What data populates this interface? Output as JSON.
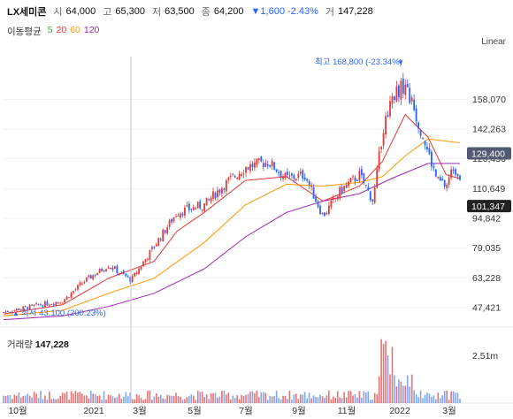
{
  "header": {
    "name": "LX세미콘",
    "open_label": "시",
    "open": "64,000",
    "high_label": "고",
    "high": "65,300",
    "low_label": "저",
    "low": "63,500",
    "close_label": "종",
    "close": "64,200",
    "change": "▼1,600 -2.43%",
    "volume_label": "거",
    "volume": "147,228"
  },
  "ma_legend": {
    "title": "이동평균",
    "items": [
      {
        "label": "5",
        "color": "#4caf50"
      },
      {
        "label": "20",
        "color": "#e53935"
      },
      {
        "label": "60",
        "color": "#ff9800"
      },
      {
        "label": "120",
        "color": "#9c27b0"
      }
    ]
  },
  "scale_mode": "Linear",
  "volume_title": "거래량",
  "volume_value": "147,228",
  "colors": {
    "up": "#e53935",
    "down": "#2962ff",
    "badge": "#505a73"
  },
  "chart_data": {
    "type": "candlestick",
    "x_ticks": [
      "10월",
      "2021",
      "3월",
      "5월",
      "7월",
      "9월",
      "11월",
      "2022",
      "3월"
    ],
    "y_ticks": [
      "47,421",
      "63,228",
      "79,035",
      "94,842",
      "110,649",
      "126,456",
      "142,263",
      "158,070"
    ],
    "y_range": [
      38000,
      178000
    ],
    "price_badges": [
      {
        "label": "129,400",
        "value": 129400
      },
      {
        "label": "101,347",
        "value": 101347
      }
    ],
    "annotations": {
      "high": {
        "text": "최고 168,800 (-23.34%)",
        "value": 168800
      },
      "low": {
        "text": "최저 43,100 (200.23%)",
        "value": 43100
      }
    },
    "volume_tick": "2.51m",
    "volume_max_m": 2.51,
    "close_series": [
      {
        "t": 0.0,
        "v": 45000
      },
      {
        "t": 0.06,
        "v": 48000
      },
      {
        "t": 0.13,
        "v": 51000
      },
      {
        "t": 0.18,
        "v": 62000
      },
      {
        "t": 0.23,
        "v": 70000
      },
      {
        "t": 0.28,
        "v": 62000
      },
      {
        "t": 0.33,
        "v": 80000
      },
      {
        "t": 0.38,
        "v": 98000
      },
      {
        "t": 0.44,
        "v": 102000
      },
      {
        "t": 0.48,
        "v": 112000
      },
      {
        "t": 0.53,
        "v": 122000
      },
      {
        "t": 0.58,
        "v": 125000
      },
      {
        "t": 0.62,
        "v": 116000
      },
      {
        "t": 0.66,
        "v": 118000
      },
      {
        "t": 0.7,
        "v": 96000
      },
      {
        "t": 0.74,
        "v": 110000
      },
      {
        "t": 0.78,
        "v": 118000
      },
      {
        "t": 0.81,
        "v": 104000
      },
      {
        "t": 0.83,
        "v": 140000
      },
      {
        "t": 0.85,
        "v": 160000
      },
      {
        "t": 0.88,
        "v": 166000
      },
      {
        "t": 0.91,
        "v": 145000
      },
      {
        "t": 0.93,
        "v": 130000
      },
      {
        "t": 0.95,
        "v": 115000
      },
      {
        "t": 0.97,
        "v": 112000
      },
      {
        "t": 0.985,
        "v": 122000
      },
      {
        "t": 1.0,
        "v": 118000
      }
    ],
    "ma_lines": [
      {
        "period": 20,
        "points": [
          [
            0.0,
            44000
          ],
          [
            0.13,
            49000
          ],
          [
            0.23,
            63000
          ],
          [
            0.33,
            72000
          ],
          [
            0.38,
            88000
          ],
          [
            0.44,
            98000
          ],
          [
            0.53,
            115000
          ],
          [
            0.62,
            117000
          ],
          [
            0.7,
            104000
          ],
          [
            0.78,
            112000
          ],
          [
            0.83,
            125000
          ],
          [
            0.88,
            150000
          ],
          [
            0.93,
            138000
          ],
          [
            0.97,
            118000
          ],
          [
            1.0,
            116000
          ]
        ]
      },
      {
        "period": 60,
        "points": [
          [
            0.0,
            43000
          ],
          [
            0.13,
            46000
          ],
          [
            0.23,
            55000
          ],
          [
            0.33,
            63000
          ],
          [
            0.44,
            82000
          ],
          [
            0.53,
            102000
          ],
          [
            0.62,
            113000
          ],
          [
            0.7,
            112000
          ],
          [
            0.78,
            114000
          ],
          [
            0.83,
            117000
          ],
          [
            0.88,
            128000
          ],
          [
            0.93,
            137000
          ],
          [
            1.0,
            135000
          ]
        ]
      },
      {
        "period": 120,
        "points": [
          [
            0.0,
            41000
          ],
          [
            0.13,
            43000
          ],
          [
            0.23,
            48000
          ],
          [
            0.33,
            55000
          ],
          [
            0.44,
            68000
          ],
          [
            0.53,
            85000
          ],
          [
            0.62,
            98000
          ],
          [
            0.7,
            104000
          ],
          [
            0.78,
            108000
          ],
          [
            0.85,
            116000
          ],
          [
            0.93,
            124000
          ],
          [
            1.0,
            124000
          ]
        ]
      }
    ]
  }
}
